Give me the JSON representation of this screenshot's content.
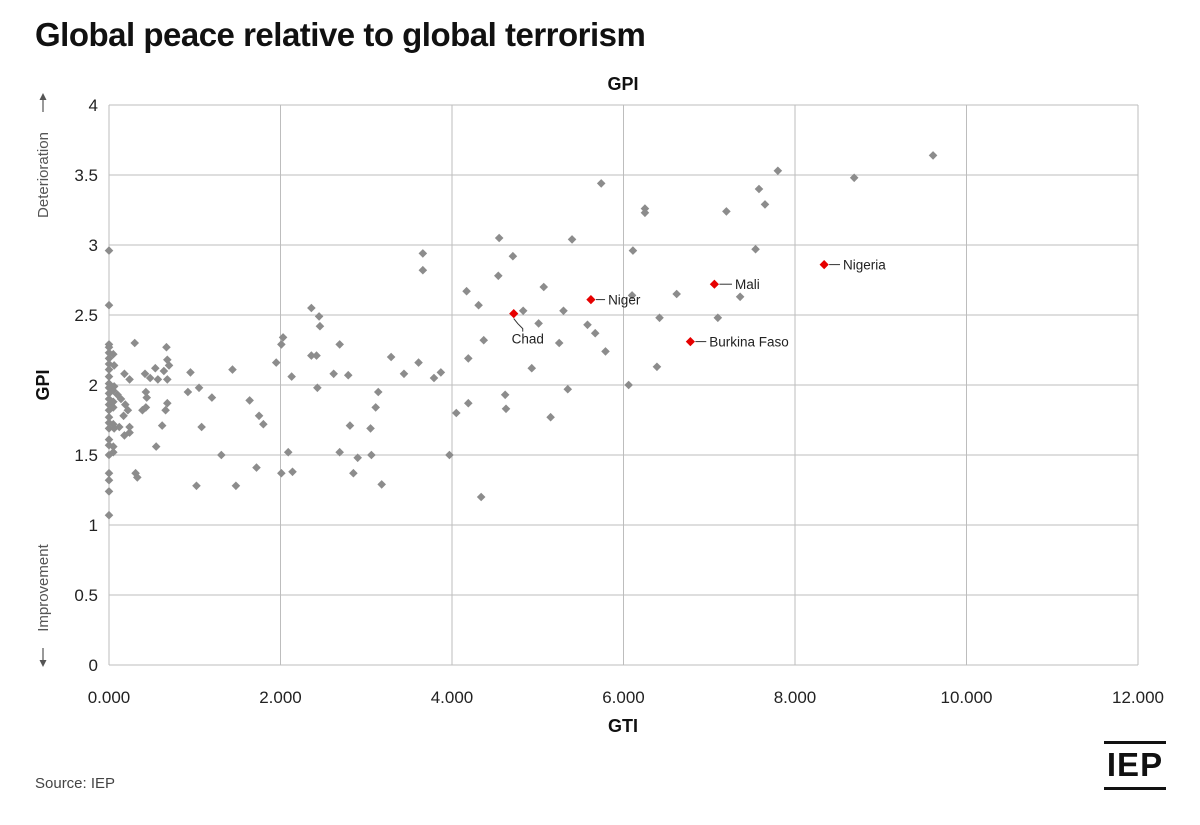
{
  "title": "Global peace relative to global terrorism",
  "source": "Source: IEP",
  "logo_text": "IEP",
  "colors": {
    "points": "#8c8c8c",
    "highlight": "#e60000",
    "grid": "#bdbdbd"
  },
  "chart_data": {
    "type": "scatter",
    "title": "GPI",
    "xlabel": "GTI",
    "ylabel": "GPI",
    "y_direction_labels": {
      "top": "Deterioration",
      "bottom": "Improvement"
    },
    "xlim": [
      0,
      12
    ],
    "ylim": [
      0,
      4
    ],
    "x_ticks": [
      {
        "v": 0,
        "label": "0.000"
      },
      {
        "v": 2,
        "label": "2.000"
      },
      {
        "v": 4,
        "label": "4.000"
      },
      {
        "v": 6,
        "label": "6.000"
      },
      {
        "v": 8,
        "label": "8.000"
      },
      {
        "v": 10,
        "label": "10.000"
      },
      {
        "v": 12,
        "label": "12.000"
      }
    ],
    "y_ticks": [
      {
        "v": 0,
        "label": "0"
      },
      {
        "v": 0.5,
        "label": "0.5"
      },
      {
        "v": 1,
        "label": "1"
      },
      {
        "v": 1.5,
        "label": "1.5"
      },
      {
        "v": 2,
        "label": "2"
      },
      {
        "v": 2.5,
        "label": "2.5"
      },
      {
        "v": 3,
        "label": "3"
      },
      {
        "v": 3.5,
        "label": "3.5"
      },
      {
        "v": 4,
        "label": "4"
      }
    ],
    "grid": true,
    "highlighted": [
      {
        "name": "Chad",
        "x": 4.72,
        "y": 2.51
      },
      {
        "name": "Niger",
        "x": 5.62,
        "y": 2.61
      },
      {
        "name": "Mali",
        "x": 7.06,
        "y": 2.72
      },
      {
        "name": "Burkina Faso",
        "x": 6.78,
        "y": 2.31
      },
      {
        "name": "Nigeria",
        "x": 8.34,
        "y": 2.86
      }
    ],
    "points": [
      [
        0.0,
        2.96
      ],
      [
        0.0,
        2.57
      ],
      [
        0.0,
        2.29
      ],
      [
        0.0,
        2.27
      ],
      [
        0.0,
        2.23
      ],
      [
        0.0,
        2.19
      ],
      [
        0.0,
        2.15
      ],
      [
        0.0,
        2.11
      ],
      [
        0.0,
        2.06
      ],
      [
        0.0,
        2.01
      ],
      [
        0.0,
        1.98
      ],
      [
        0.0,
        1.94
      ],
      [
        0.0,
        1.9
      ],
      [
        0.0,
        1.86
      ],
      [
        0.0,
        1.82
      ],
      [
        0.0,
        1.77
      ],
      [
        0.0,
        1.73
      ],
      [
        0.0,
        1.69
      ],
      [
        0.0,
        1.61
      ],
      [
        0.0,
        1.57
      ],
      [
        0.0,
        1.5
      ],
      [
        0.0,
        1.37
      ],
      [
        0.0,
        1.32
      ],
      [
        0.0,
        1.24
      ],
      [
        0.0,
        1.07
      ],
      [
        0.05,
        2.22
      ],
      [
        0.05,
        1.96
      ],
      [
        0.05,
        1.84
      ],
      [
        0.05,
        1.72
      ],
      [
        0.05,
        1.56
      ],
      [
        0.05,
        1.52
      ],
      [
        0.05,
        1.88
      ],
      [
        0.06,
        2.14
      ],
      [
        0.06,
        1.99
      ],
      [
        0.06,
        1.69
      ],
      [
        0.1,
        1.93
      ],
      [
        0.12,
        1.7
      ],
      [
        0.14,
        1.9
      ],
      [
        0.17,
        1.78
      ],
      [
        0.18,
        2.08
      ],
      [
        0.18,
        1.64
      ],
      [
        0.19,
        1.86
      ],
      [
        0.22,
        1.82
      ],
      [
        0.24,
        1.7
      ],
      [
        0.24,
        1.66
      ],
      [
        0.24,
        2.04
      ],
      [
        0.3,
        2.3
      ],
      [
        0.31,
        1.37
      ],
      [
        0.33,
        1.34
      ],
      [
        0.39,
        1.82
      ],
      [
        0.42,
        2.08
      ],
      [
        0.43,
        1.84
      ],
      [
        0.43,
        1.95
      ],
      [
        0.44,
        1.91
      ],
      [
        0.48,
        2.05
      ],
      [
        0.54,
        2.12
      ],
      [
        0.55,
        1.56
      ],
      [
        0.57,
        2.04
      ],
      [
        0.62,
        1.71
      ],
      [
        0.64,
        2.1
      ],
      [
        0.66,
        1.82
      ],
      [
        0.67,
        2.27
      ],
      [
        0.68,
        1.87
      ],
      [
        0.68,
        2.18
      ],
      [
        0.68,
        2.04
      ],
      [
        0.7,
        2.14
      ],
      [
        0.92,
        1.95
      ],
      [
        0.95,
        2.09
      ],
      [
        1.02,
        1.28
      ],
      [
        1.05,
        1.98
      ],
      [
        1.08,
        1.7
      ],
      [
        1.2,
        1.91
      ],
      [
        1.31,
        1.5
      ],
      [
        1.44,
        2.11
      ],
      [
        1.48,
        1.28
      ],
      [
        1.64,
        1.89
      ],
      [
        1.72,
        1.41
      ],
      [
        1.75,
        1.78
      ],
      [
        1.8,
        1.72
      ],
      [
        1.95,
        2.16
      ],
      [
        2.01,
        2.29
      ],
      [
        2.03,
        2.34
      ],
      [
        2.01,
        1.37
      ],
      [
        2.09,
        1.52
      ],
      [
        2.13,
        2.06
      ],
      [
        2.14,
        1.38
      ],
      [
        2.36,
        2.55
      ],
      [
        2.36,
        2.21
      ],
      [
        2.42,
        2.21
      ],
      [
        2.43,
        1.98
      ],
      [
        2.45,
        2.49
      ],
      [
        2.46,
        2.42
      ],
      [
        2.62,
        2.08
      ],
      [
        2.69,
        2.29
      ],
      [
        2.69,
        1.52
      ],
      [
        2.79,
        2.07
      ],
      [
        2.81,
        1.71
      ],
      [
        2.85,
        1.37
      ],
      [
        2.9,
        1.48
      ],
      [
        3.05,
        1.69
      ],
      [
        3.06,
        1.5
      ],
      [
        3.11,
        1.84
      ],
      [
        3.14,
        1.95
      ],
      [
        3.18,
        1.29
      ],
      [
        3.29,
        2.2
      ],
      [
        3.44,
        2.08
      ],
      [
        3.61,
        2.16
      ],
      [
        3.66,
        2.94
      ],
      [
        3.66,
        2.82
      ],
      [
        3.79,
        2.05
      ],
      [
        3.87,
        2.09
      ],
      [
        3.97,
        1.5
      ],
      [
        4.05,
        1.8
      ],
      [
        4.17,
        2.67
      ],
      [
        4.19,
        2.19
      ],
      [
        4.19,
        1.87
      ],
      [
        4.31,
        2.57
      ],
      [
        4.34,
        1.2
      ],
      [
        4.37,
        2.32
      ],
      [
        4.54,
        2.78
      ],
      [
        4.55,
        3.05
      ],
      [
        4.62,
        1.93
      ],
      [
        4.63,
        1.83
      ],
      [
        4.71,
        2.92
      ],
      [
        4.83,
        2.53
      ],
      [
        4.93,
        2.12
      ],
      [
        5.01,
        2.44
      ],
      [
        5.07,
        2.7
      ],
      [
        5.15,
        1.77
      ],
      [
        5.25,
        2.3
      ],
      [
        5.3,
        2.53
      ],
      [
        5.35,
        1.97
      ],
      [
        5.4,
        3.04
      ],
      [
        5.58,
        2.43
      ],
      [
        5.67,
        2.37
      ],
      [
        5.74,
        3.44
      ],
      [
        5.79,
        2.24
      ],
      [
        6.06,
        2.0
      ],
      [
        6.1,
        2.64
      ],
      [
        6.11,
        2.96
      ],
      [
        6.25,
        3.26
      ],
      [
        6.25,
        3.23
      ],
      [
        6.39,
        2.13
      ],
      [
        6.42,
        2.48
      ],
      [
        6.62,
        2.65
      ],
      [
        7.1,
        2.48
      ],
      [
        7.2,
        3.24
      ],
      [
        7.36,
        2.63
      ],
      [
        7.54,
        2.97
      ],
      [
        7.58,
        3.4
      ],
      [
        7.65,
        3.29
      ],
      [
        7.8,
        3.53
      ],
      [
        8.69,
        3.48
      ],
      [
        9.61,
        3.64
      ]
    ]
  }
}
